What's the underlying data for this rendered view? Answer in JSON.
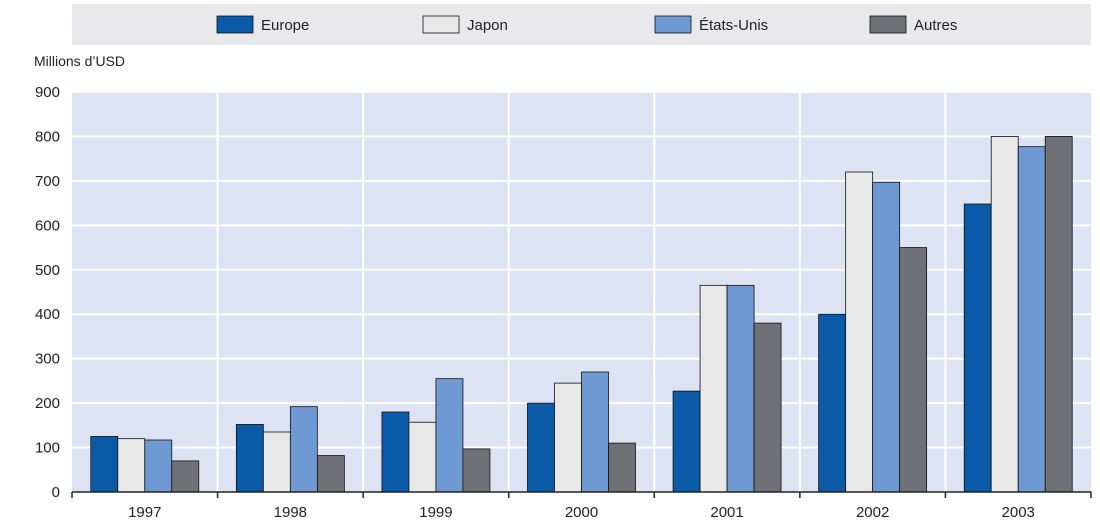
{
  "chart_data": {
    "type": "bar",
    "ylabel": "Millions d’USD",
    "ylim": [
      0,
      900
    ],
    "yticks": [
      0,
      100,
      200,
      300,
      400,
      500,
      600,
      700,
      800,
      900
    ],
    "categories": [
      "1997",
      "1998",
      "1999",
      "2000",
      "2001",
      "2002",
      "2003"
    ],
    "grid": true,
    "legend_position": "top",
    "series": [
      {
        "name": "Europe",
        "color": "#0a5aa8",
        "values": [
          125,
          152,
          180,
          200,
          227,
          400,
          648
        ]
      },
      {
        "name": "Japon",
        "color": "#e8e8e8",
        "values": [
          120,
          135,
          157,
          245,
          465,
          720,
          800
        ]
      },
      {
        "name": "États-Unis",
        "color": "#6f99d2",
        "values": [
          117,
          192,
          255,
          270,
          465,
          697,
          777
        ]
      },
      {
        "name": "Autres",
        "color": "#707176",
        "values": [
          70,
          82,
          97,
          110,
          380,
          550,
          800
        ]
      }
    ],
    "plot_background": "#dde3f3",
    "legend_background": "#e9e9ec"
  }
}
